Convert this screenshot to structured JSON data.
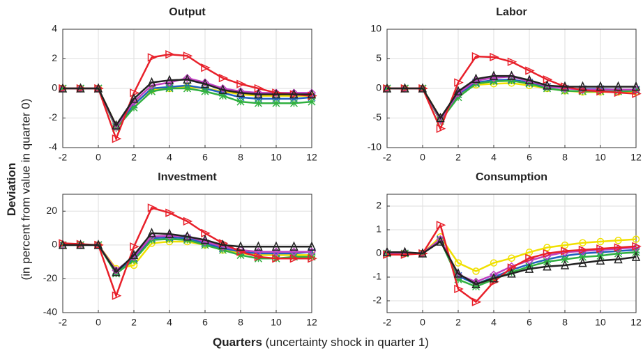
{
  "chart_data": [
    {
      "type": "line",
      "title": "Output",
      "x": [
        -2,
        -1,
        0,
        1,
        2,
        3,
        4,
        5,
        6,
        7,
        8,
        9,
        10,
        11,
        12
      ],
      "xlim": [
        -2,
        12
      ],
      "xticks": [
        -2,
        0,
        2,
        4,
        6,
        8,
        10,
        12
      ],
      "ylim": [
        -4,
        4
      ],
      "yticks": [
        -4,
        -2,
        0,
        2,
        4
      ],
      "grid": true,
      "series": [
        {
          "color": "#f0e000",
          "marker": "circle",
          "values": [
            0,
            0,
            0,
            -2.5,
            -1,
            -0.1,
            0,
            0.1,
            0,
            -0.2,
            -0.4,
            -0.5,
            -0.5,
            -0.5,
            -0.5
          ]
        },
        {
          "color": "#2060c0",
          "marker": "cross",
          "values": [
            0,
            0,
            0,
            -2.6,
            -1.1,
            0,
            0.1,
            0.2,
            0,
            -0.3,
            -0.6,
            -0.7,
            -0.7,
            -0.7,
            -0.6
          ]
        },
        {
          "color": "#30b040",
          "marker": "star",
          "values": [
            0,
            0,
            0,
            -2.7,
            -1.3,
            -0.2,
            0,
            0,
            -0.2,
            -0.5,
            -0.9,
            -1,
            -1,
            -1,
            -0.9
          ]
        },
        {
          "color": "#c040c0",
          "marker": "diamond",
          "values": [
            0,
            0,
            0,
            -2.6,
            -0.9,
            0.2,
            0.4,
            0.7,
            0.4,
            0,
            -0.2,
            -0.3,
            -0.3,
            -0.3,
            -0.3
          ]
        },
        {
          "color": "#e8202a",
          "marker": "triangle-right",
          "values": [
            0,
            0,
            0,
            -3.4,
            -0.3,
            2.1,
            2.3,
            2.2,
            1.4,
            0.7,
            0.3,
            0,
            -0.3,
            -0.4,
            -0.5
          ]
        },
        {
          "color": "#222222",
          "marker": "triangle-up",
          "values": [
            0,
            0,
            0,
            -2.5,
            -0.7,
            0.4,
            0.55,
            0.6,
            0.3,
            -0.1,
            -0.3,
            -0.4,
            -0.4,
            -0.4,
            -0.4
          ]
        }
      ]
    },
    {
      "type": "line",
      "title": "Labor",
      "x": [
        -2,
        -1,
        0,
        1,
        2,
        3,
        4,
        5,
        6,
        7,
        8,
        9,
        10,
        11,
        12
      ],
      "xlim": [
        -2,
        12
      ],
      "xticks": [
        -2,
        0,
        2,
        4,
        6,
        8,
        10,
        12
      ],
      "ylim": [
        -10,
        10
      ],
      "yticks": [
        -10,
        -5,
        0,
        5,
        10
      ],
      "grid": true,
      "series": [
        {
          "color": "#f0e000",
          "marker": "circle",
          "values": [
            0,
            0,
            0,
            -5,
            -1,
            0.6,
            0.8,
            0.9,
            0.5,
            0,
            -0.4,
            -0.6,
            -0.6,
            -0.6,
            -0.6
          ]
        },
        {
          "color": "#2060c0",
          "marker": "cross",
          "values": [
            0,
            0,
            0,
            -5.2,
            -1,
            1,
            1.4,
            1.5,
            1,
            0.3,
            0,
            -0.1,
            -0.1,
            -0.2,
            -0.2
          ]
        },
        {
          "color": "#30b040",
          "marker": "star",
          "values": [
            0,
            0,
            0,
            -5.5,
            -1.5,
            0.8,
            1.2,
            1.3,
            0.8,
            0,
            -0.4,
            -0.5,
            -0.5,
            -0.5,
            -0.4
          ]
        },
        {
          "color": "#c040c0",
          "marker": "diamond",
          "values": [
            0,
            0,
            0,
            -5.3,
            -0.8,
            1.3,
            1.8,
            2,
            1.2,
            0.4,
            0,
            -0.2,
            -0.2,
            -0.2,
            -0.2
          ]
        },
        {
          "color": "#e8202a",
          "marker": "triangle-right",
          "values": [
            0,
            0,
            0,
            -6.8,
            1,
            5.4,
            5.3,
            4.5,
            3,
            1.5,
            0.3,
            -0.3,
            -0.5,
            -0.7,
            -0.9
          ]
        },
        {
          "color": "#222222",
          "marker": "triangle-up",
          "values": [
            0,
            0,
            0,
            -5,
            -0.5,
            1.6,
            2.1,
            2.1,
            1.4,
            0.5,
            0.3,
            0.3,
            0.3,
            0.3,
            0.3
          ]
        }
      ]
    },
    {
      "type": "line",
      "title": "Investment",
      "x": [
        -2,
        -1,
        0,
        1,
        2,
        3,
        4,
        5,
        6,
        7,
        8,
        9,
        10,
        11,
        12
      ],
      "xlim": [
        -2,
        12
      ],
      "xticks": [
        -2,
        0,
        2,
        4,
        6,
        8,
        10,
        12
      ],
      "ylim": [
        -40,
        30
      ],
      "yticks": [
        -40,
        -20,
        0,
        20
      ],
      "grid": true,
      "series": [
        {
          "color": "#f0e000",
          "marker": "circle",
          "values": [
            0,
            0,
            0,
            -14,
            -12,
            1,
            2,
            2,
            0,
            -3,
            -5,
            -6,
            -6,
            -6,
            -6
          ]
        },
        {
          "color": "#2060c0",
          "marker": "cross",
          "values": [
            0,
            0,
            0,
            -16,
            -8,
            4,
            4.5,
            4,
            1,
            -2,
            -4,
            -5,
            -5,
            -5,
            -4
          ]
        },
        {
          "color": "#30b040",
          "marker": "star",
          "values": [
            0,
            0,
            0,
            -17,
            -9,
            3,
            3.5,
            3,
            0,
            -3,
            -6,
            -8,
            -8,
            -7,
            -7
          ]
        },
        {
          "color": "#c040c0",
          "marker": "diamond",
          "values": [
            0,
            0,
            0,
            -15,
            -7,
            5,
            5.5,
            5,
            2,
            -1,
            -3,
            -4,
            -4,
            -4,
            -4
          ]
        },
        {
          "color": "#e8202a",
          "marker": "triangle-right",
          "values": [
            1,
            0.5,
            0,
            -30,
            -1,
            22,
            19,
            14,
            7,
            1,
            -4,
            -7,
            -8,
            -8,
            -8
          ]
        },
        {
          "color": "#222222",
          "marker": "triangle-up",
          "values": [
            0,
            0,
            0,
            -16,
            -6,
            7,
            6.5,
            5,
            3,
            0,
            -1,
            -1,
            -1,
            -1,
            -1
          ]
        }
      ]
    },
    {
      "type": "line",
      "title": "Consumption",
      "x": [
        -2,
        -1,
        0,
        1,
        2,
        3,
        4,
        5,
        6,
        7,
        8,
        9,
        10,
        11,
        12
      ],
      "xlim": [
        -2,
        12
      ],
      "xticks": [
        -2,
        0,
        2,
        4,
        6,
        8,
        10,
        12
      ],
      "ylim": [
        -2.5,
        2.5
      ],
      "yticks": [
        -2,
        -1,
        0,
        1,
        2
      ],
      "grid": true,
      "series": [
        {
          "color": "#f0e000",
          "marker": "circle",
          "values": [
            0,
            0,
            0,
            0.7,
            -0.4,
            -0.75,
            -0.4,
            -0.2,
            0.05,
            0.25,
            0.35,
            0.45,
            0.5,
            0.55,
            0.6
          ]
        },
        {
          "color": "#2060c0",
          "marker": "cross",
          "values": [
            0,
            0,
            0,
            0.6,
            -0.95,
            -1.3,
            -1,
            -0.7,
            -0.45,
            -0.25,
            -0.1,
            0,
            0.05,
            0.1,
            0.15
          ]
        },
        {
          "color": "#30b040",
          "marker": "star",
          "values": [
            0,
            0,
            0,
            0.55,
            -1.1,
            -1.4,
            -1.1,
            -0.8,
            -0.55,
            -0.35,
            -0.25,
            -0.15,
            -0.1,
            0,
            0.05
          ]
        },
        {
          "color": "#c040c0",
          "marker": "diamond",
          "values": [
            0,
            0,
            0,
            0.6,
            -0.9,
            -1.2,
            -0.9,
            -0.55,
            -0.3,
            -0.1,
            0.05,
            0.1,
            0.15,
            0.2,
            0.25
          ]
        },
        {
          "color": "#e8202a",
          "marker": "triangle-right",
          "values": [
            -0.05,
            -0.05,
            0,
            1.2,
            -1.5,
            -2.05,
            -1.2,
            -0.6,
            -0.2,
            0,
            0.1,
            0.15,
            0.2,
            0.25,
            0.3
          ]
        },
        {
          "color": "#222222",
          "marker": "triangle-up",
          "values": [
            0.05,
            0.05,
            0,
            0.5,
            -0.85,
            -1.3,
            -1.05,
            -0.85,
            -0.65,
            -0.55,
            -0.5,
            -0.4,
            -0.3,
            -0.25,
            -0.15
          ]
        }
      ]
    }
  ],
  "ylabel": {
    "bold": "Deviation",
    "text": "(in percent from value in quarter 0)"
  },
  "xlabel": {
    "bold": "Quarters",
    "text": " (uncertainty shock in quarter 1)"
  }
}
